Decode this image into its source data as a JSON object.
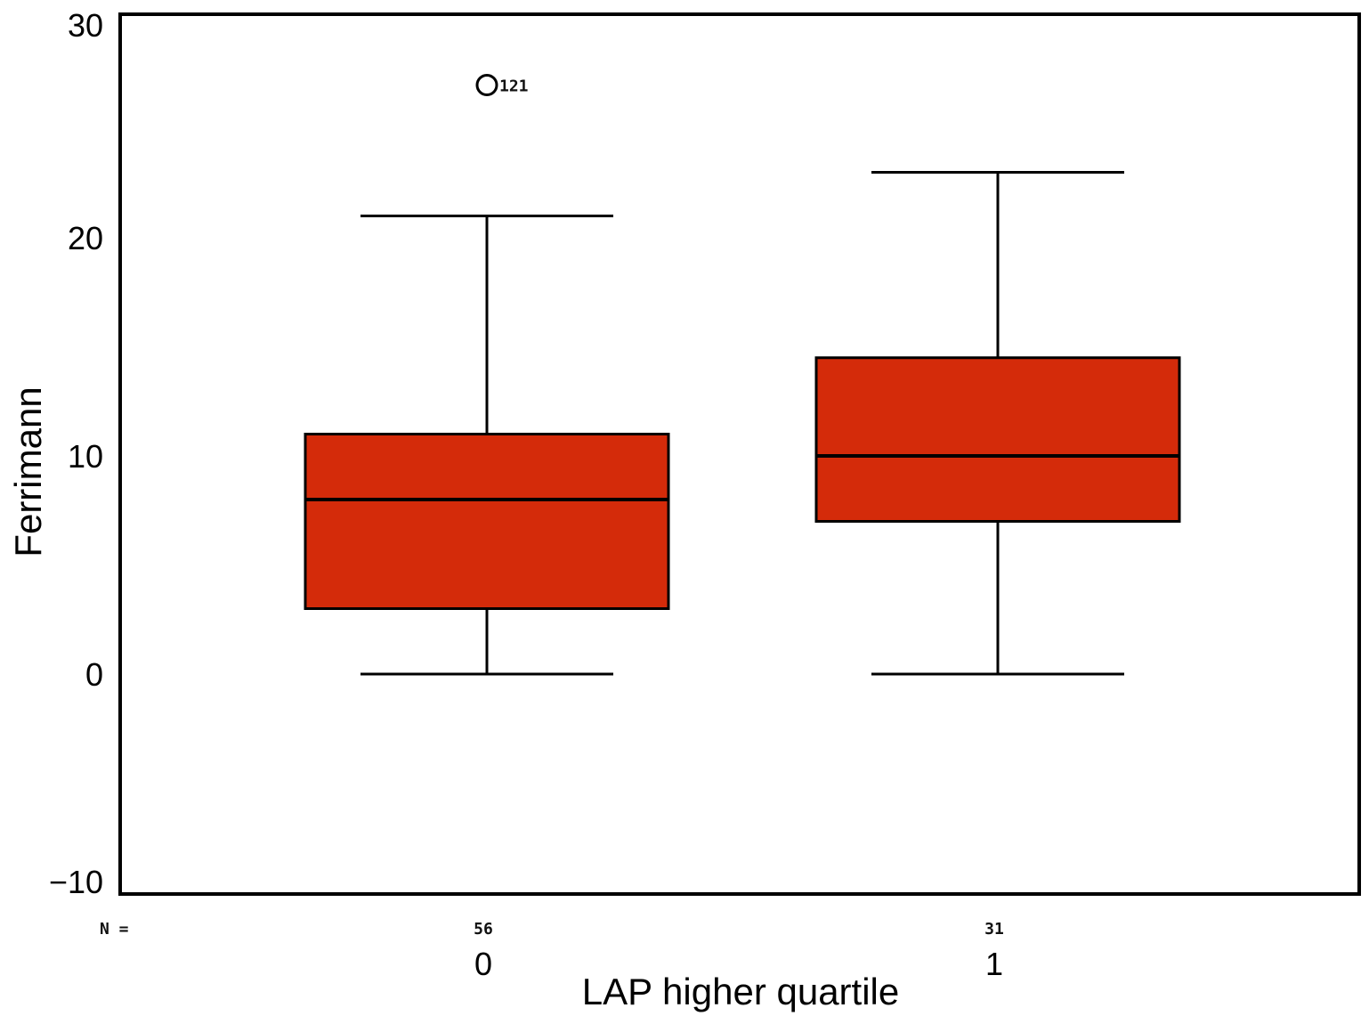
{
  "chart_data": {
    "type": "boxplot",
    "xlabel": "LAP higher quartile",
    "ylabel": "Ferrimann",
    "ylim": [
      -10,
      30
    ],
    "yticks": [
      30,
      20,
      10,
      0,
      -10
    ],
    "ytick_labels": [
      "30",
      "20",
      "10",
      "0",
      "−10"
    ],
    "grid": false,
    "n_prefix": "N =",
    "categories": [
      "0",
      "1"
    ],
    "n": [
      "56",
      "31"
    ],
    "boxes": [
      {
        "category": "0",
        "min": 0,
        "q1": 3,
        "median": 8,
        "q3": 11,
        "max": 21,
        "outliers": [
          {
            "value": 27,
            "label": "121"
          }
        ]
      },
      {
        "category": "1",
        "min": 0,
        "q1": 7,
        "median": 10,
        "q3": 14.5,
        "max": 23,
        "outliers": []
      }
    ],
    "box_color": "#d42b0a"
  }
}
